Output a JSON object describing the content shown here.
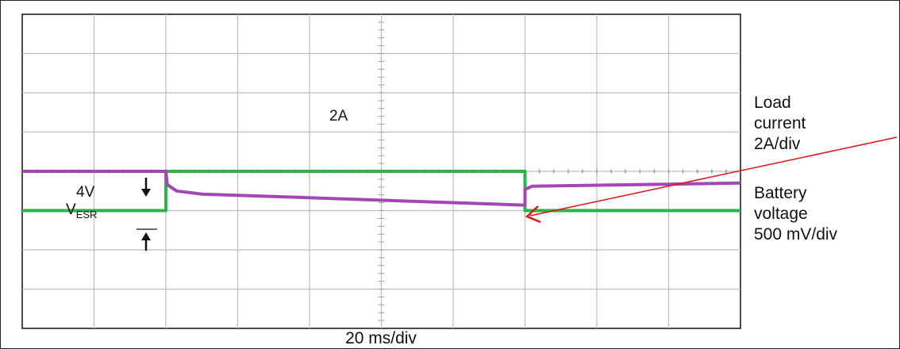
{
  "chart_data": {
    "type": "line",
    "title": "",
    "xlabel": "20 ms/div",
    "ylabel": "",
    "grid": true,
    "x_divisions": 10,
    "y_divisions": 8,
    "series": [
      {
        "name": "Load current",
        "scale": "2A/div",
        "color": "#2db34a",
        "points": [
          [
            0,
            3.0
          ],
          [
            2.0,
            3.0
          ],
          [
            2.0,
            4.0
          ],
          [
            7.0,
            4.0
          ],
          [
            7.0,
            3.0
          ],
          [
            10.0,
            3.0
          ]
        ]
      },
      {
        "name": "Battery voltage",
        "scale": "500 mV/div",
        "color": "#a347b5",
        "points": [
          [
            0,
            4.0
          ],
          [
            2.0,
            4.0
          ],
          [
            2.02,
            3.66
          ],
          [
            2.15,
            3.5
          ],
          [
            2.5,
            3.42
          ],
          [
            3.0,
            3.39
          ],
          [
            7.0,
            3.14
          ],
          [
            7.0,
            3.54
          ],
          [
            7.1,
            3.62
          ],
          [
            10.0,
            3.7
          ]
        ]
      }
    ],
    "annotations": {
      "current_level": "2A",
      "voltage_level": "4V",
      "vesr_main": "V",
      "vesr_sub": "ESR"
    },
    "side_labels": {
      "current": [
        "Load",
        "current",
        "2A/div"
      ],
      "voltage": [
        "Battery",
        "voltage",
        "500 mV/div"
      ]
    },
    "pointer_arrow_color": "#e31414"
  }
}
